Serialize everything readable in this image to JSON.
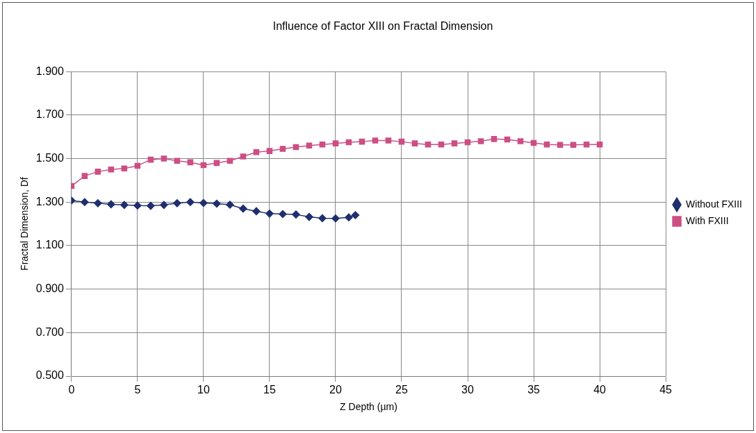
{
  "chart_data": {
    "type": "line",
    "title": "Influence of Factor XIII on Fractal Dimension",
    "xlabel": "Z Depth (µm)",
    "ylabel": "Fractal Dimension, Df",
    "xlim": [
      0,
      45
    ],
    "xticks": [
      0,
      5,
      10,
      15,
      20,
      25,
      30,
      35,
      40,
      45
    ],
    "ylim": [
      0.5,
      1.9
    ],
    "yticks": [
      {
        "value": 0.5,
        "label": "0.500"
      },
      {
        "value": 0.7,
        "label": "0.700"
      },
      {
        "value": 0.9,
        "label": "0.900"
      },
      {
        "value": 1.1,
        "label": "1.100"
      },
      {
        "value": 1.3,
        "label": "1.300"
      },
      {
        "value": 1.5,
        "label": "1.500"
      },
      {
        "value": 1.7,
        "label": "1.700"
      },
      {
        "value": 1.9,
        "label": "1.900"
      }
    ],
    "grid": true,
    "legend": "right",
    "line_style": "solid",
    "series": [
      {
        "name": "Without FXIII",
        "color": "#1f2f6e",
        "marker": "diamond",
        "x": [
          0,
          1,
          2,
          3,
          4,
          5,
          6,
          7,
          8,
          9,
          10,
          11,
          12,
          13,
          14,
          15,
          16,
          17,
          18,
          19,
          20,
          21,
          21.5
        ],
        "values": [
          1.307,
          1.3,
          1.295,
          1.29,
          1.287,
          1.284,
          1.283,
          1.287,
          1.295,
          1.3,
          1.296,
          1.293,
          1.288,
          1.27,
          1.258,
          1.247,
          1.245,
          1.243,
          1.232,
          1.226,
          1.225,
          1.23,
          1.24
        ]
      },
      {
        "name": "With FXIII",
        "color": "#cc4f84",
        "marker": "square",
        "x": [
          0,
          1,
          2,
          3,
          4,
          5,
          6,
          7,
          8,
          9,
          10,
          11,
          12,
          13,
          14,
          15,
          16,
          17,
          18,
          19,
          20,
          21,
          22,
          23,
          24,
          25,
          26,
          27,
          28,
          29,
          30,
          31,
          32,
          33,
          34,
          35,
          36,
          37,
          38,
          39,
          40
        ],
        "values": [
          1.374,
          1.42,
          1.44,
          1.45,
          1.455,
          1.467,
          1.495,
          1.5,
          1.49,
          1.483,
          1.47,
          1.48,
          1.49,
          1.51,
          1.53,
          1.535,
          1.545,
          1.553,
          1.56,
          1.565,
          1.57,
          1.575,
          1.578,
          1.583,
          1.583,
          1.578,
          1.57,
          1.565,
          1.565,
          1.57,
          1.575,
          1.58,
          1.59,
          1.588,
          1.58,
          1.572,
          1.565,
          1.563,
          1.563,
          1.565,
          1.565
        ]
      }
    ]
  }
}
